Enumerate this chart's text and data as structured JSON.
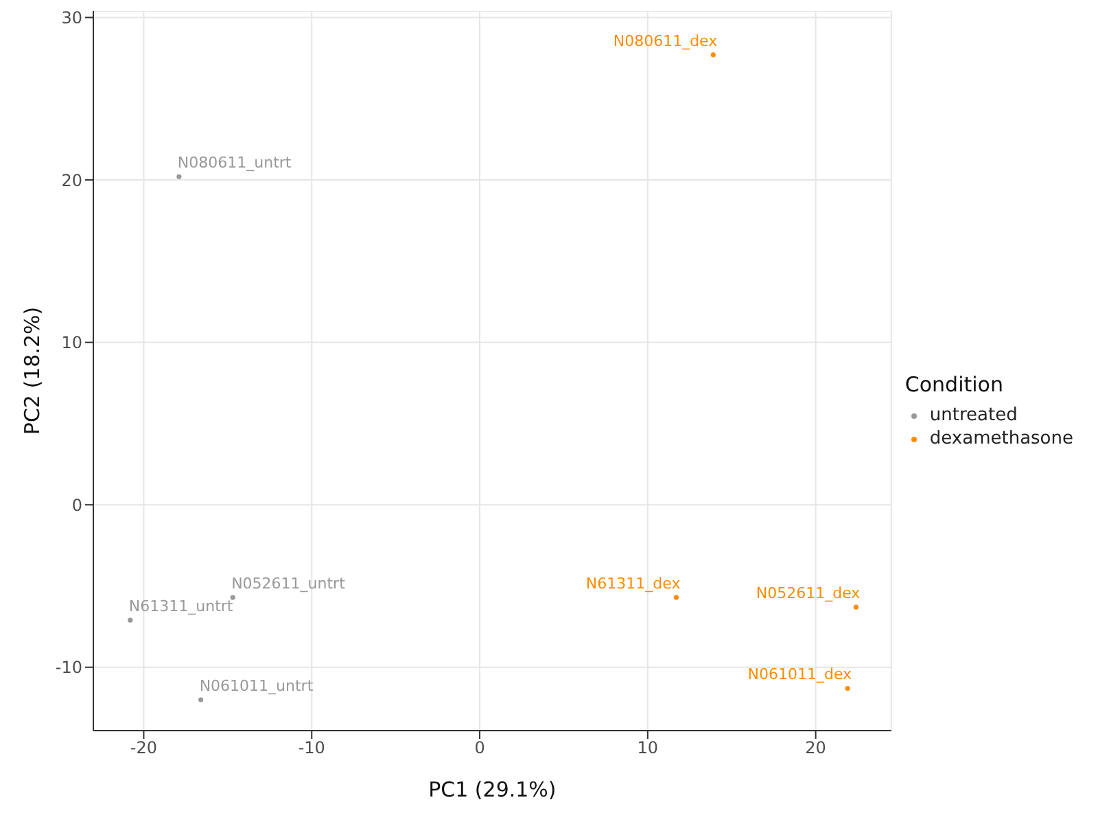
{
  "chart_data": {
    "type": "scatter",
    "xlabel": "PC1 (29.1%)",
    "ylabel": "PC2 (18.2%)",
    "legend_title": "Condition",
    "legend": "right",
    "grid": true,
    "marker": "circle",
    "xlim": [
      -23,
      24.5
    ],
    "xticks": [
      -20,
      -10,
      0,
      10,
      20
    ],
    "ylim": [
      -13.9,
      30.4
    ],
    "yticks": [
      -10,
      0,
      10,
      20,
      30
    ],
    "series": [
      {
        "name": "untreated",
        "color": "#999999",
        "x": [
          -17.9,
          -14.7,
          -20.8,
          -16.6
        ],
        "values": [
          20.2,
          -5.7,
          -7.1,
          -12.0
        ]
      },
      {
        "name": "dexamethasone",
        "color": "#ff8c00",
        "x": [
          13.9,
          11.7,
          22.4,
          21.9
        ],
        "values": [
          27.7,
          -5.7,
          -6.3,
          -11.3
        ]
      }
    ],
    "annotations": [
      {
        "text": "N080611_untrt",
        "x": -17.9,
        "y": 20.2
      },
      {
        "text": "N052611_untrt",
        "x": -14.7,
        "y": -5.7
      },
      {
        "text": "N61311_untrt",
        "x": -20.8,
        "y": -7.1
      },
      {
        "text": "N061011_untrt",
        "x": -16.6,
        "y": -12.0
      },
      {
        "text": "N080611_dex",
        "x": 13.9,
        "y": 27.7
      },
      {
        "text": "N61311_dex",
        "x": 11.7,
        "y": -5.7
      },
      {
        "text": "N052611_dex",
        "x": 22.4,
        "y": -6.3
      },
      {
        "text": "N061011_dex",
        "x": 21.9,
        "y": -11.3
      }
    ]
  }
}
